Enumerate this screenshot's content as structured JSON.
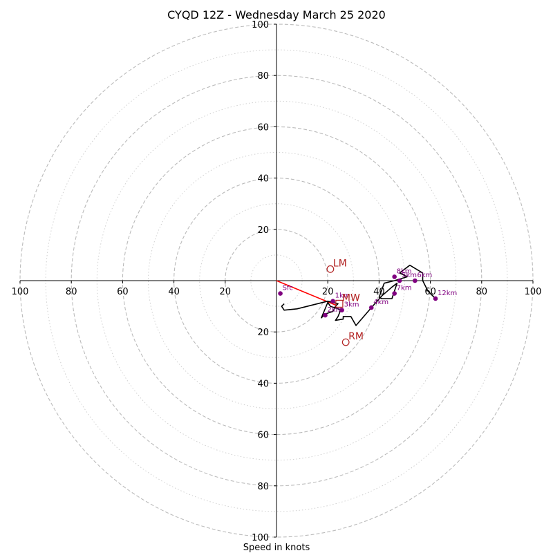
{
  "chart_data": {
    "type": "hodograph",
    "title": "CYQD 12Z - Wednesday March 25 2020",
    "xlabel": "Speed in knots",
    "range": [
      -100,
      100
    ],
    "ring_labels": [
      "100",
      "80",
      "60",
      "40",
      "20",
      "20",
      "40",
      "60",
      "80",
      "100"
    ],
    "ring_values": [
      -100,
      -80,
      -60,
      -40,
      -20,
      20,
      40,
      60,
      80,
      100
    ],
    "rings_dashed": [
      20,
      40,
      60,
      80,
      100
    ],
    "rings_dotted": [
      10,
      30,
      50,
      70,
      90
    ],
    "colors": {
      "trace": "#000000",
      "heights": "#800080",
      "motion": "#b22222",
      "shear": "#ff0000",
      "grid": "#bbbbbb"
    },
    "trace": [
      [
        3,
        -9
      ],
      [
        2,
        -10
      ],
      [
        3,
        -11.5
      ],
      [
        8,
        -11
      ],
      [
        20,
        -8
      ],
      [
        24,
        -9
      ],
      [
        23,
        -10
      ],
      [
        22,
        -12
      ],
      [
        19,
        -13
      ],
      [
        17.5,
        -14.5
      ],
      [
        20,
        -8.5
      ],
      [
        21,
        -10
      ],
      [
        24,
        -11
      ],
      [
        25,
        -11.5
      ],
      [
        24,
        -14
      ],
      [
        23,
        -15.5
      ],
      [
        26,
        -15
      ],
      [
        26,
        -14
      ],
      [
        29,
        -14
      ],
      [
        31,
        -17.5
      ],
      [
        37,
        -10.5
      ],
      [
        41,
        -6
      ],
      [
        45,
        -2.5
      ],
      [
        47,
        -1
      ],
      [
        45,
        -7
      ],
      [
        41,
        -7
      ],
      [
        40,
        -6.5
      ],
      [
        42,
        -1
      ],
      [
        46,
        0
      ],
      [
        51,
        1.5
      ],
      [
        48,
        3
      ],
      [
        52,
        6
      ],
      [
        57,
        3
      ],
      [
        57,
        0
      ],
      [
        58,
        -2
      ],
      [
        59,
        -4
      ],
      [
        62,
        -7
      ]
    ],
    "height_markers": [
      {
        "label": "Sfc",
        "u": 1.5,
        "v": -5
      },
      {
        "label": "1km",
        "u": 22,
        "v": -8
      },
      {
        "label": "2km",
        "u": 19,
        "v": -13.5
      },
      {
        "label": "3km",
        "u": 25.5,
        "v": -11.5
      },
      {
        "label": "4km",
        "u": 37,
        "v": -10.5
      },
      {
        "label": "5km",
        "u": 48,
        "v": 0
      },
      {
        "label": "6km",
        "u": 54,
        "v": 0
      },
      {
        "label": "7km",
        "u": 46,
        "v": -5
      },
      {
        "label": "8km",
        "u": 46,
        "v": 1.5
      },
      {
        "label": "12km",
        "u": 62,
        "v": -7
      }
    ],
    "storm_motion": [
      {
        "label": "LM",
        "u": 21,
        "v": 4.5
      },
      {
        "label": "MW",
        "u": 24.5,
        "v": -9
      },
      {
        "label": "RM",
        "u": 27,
        "v": -24
      }
    ],
    "shear_vector": {
      "from": [
        0,
        0
      ],
      "to": [
        23,
        -9.5
      ]
    }
  }
}
